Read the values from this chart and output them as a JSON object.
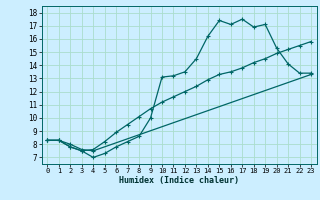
{
  "xlabel": "Humidex (Indice chaleur)",
  "bg_color": "#cceeff",
  "grid_color": "#aaddcc",
  "line_color": "#006666",
  "xlim": [
    -0.5,
    23.5
  ],
  "ylim": [
    6.5,
    18.5
  ],
  "xticks": [
    0,
    1,
    2,
    3,
    4,
    5,
    6,
    7,
    8,
    9,
    10,
    11,
    12,
    13,
    14,
    15,
    16,
    17,
    18,
    19,
    20,
    21,
    22,
    23
  ],
  "yticks": [
    7,
    8,
    9,
    10,
    11,
    12,
    13,
    14,
    15,
    16,
    17,
    18
  ],
  "line1_x": [
    0,
    1,
    2,
    3,
    4,
    5,
    6,
    7,
    8,
    9,
    10,
    11,
    12,
    13,
    14,
    15,
    16,
    17,
    18,
    19,
    20,
    21,
    22,
    23
  ],
  "line1_y": [
    8.3,
    8.3,
    7.8,
    7.5,
    7.0,
    7.3,
    7.8,
    8.2,
    8.6,
    10.0,
    13.1,
    13.2,
    13.5,
    14.5,
    16.2,
    17.4,
    17.1,
    17.5,
    16.9,
    17.1,
    15.3,
    14.1,
    13.4,
    13.4
  ],
  "line2_x": [
    0,
    1,
    2,
    3,
    4,
    5,
    6,
    7,
    8,
    9,
    10,
    11,
    12,
    13,
    14,
    15,
    16,
    17,
    18,
    19,
    20,
    21,
    22,
    23
  ],
  "line2_y": [
    8.3,
    8.3,
    7.8,
    7.5,
    7.6,
    8.2,
    8.9,
    9.5,
    10.1,
    10.7,
    11.2,
    11.6,
    12.0,
    12.4,
    12.9,
    13.3,
    13.5,
    13.8,
    14.2,
    14.5,
    14.9,
    15.2,
    15.5,
    15.8
  ],
  "line3_x": [
    0,
    1,
    2,
    3,
    4,
    23
  ],
  "line3_y": [
    8.3,
    8.3,
    8.0,
    7.6,
    7.5,
    13.3
  ],
  "tick_fontsize": 5.0,
  "xlabel_fontsize": 6.0
}
